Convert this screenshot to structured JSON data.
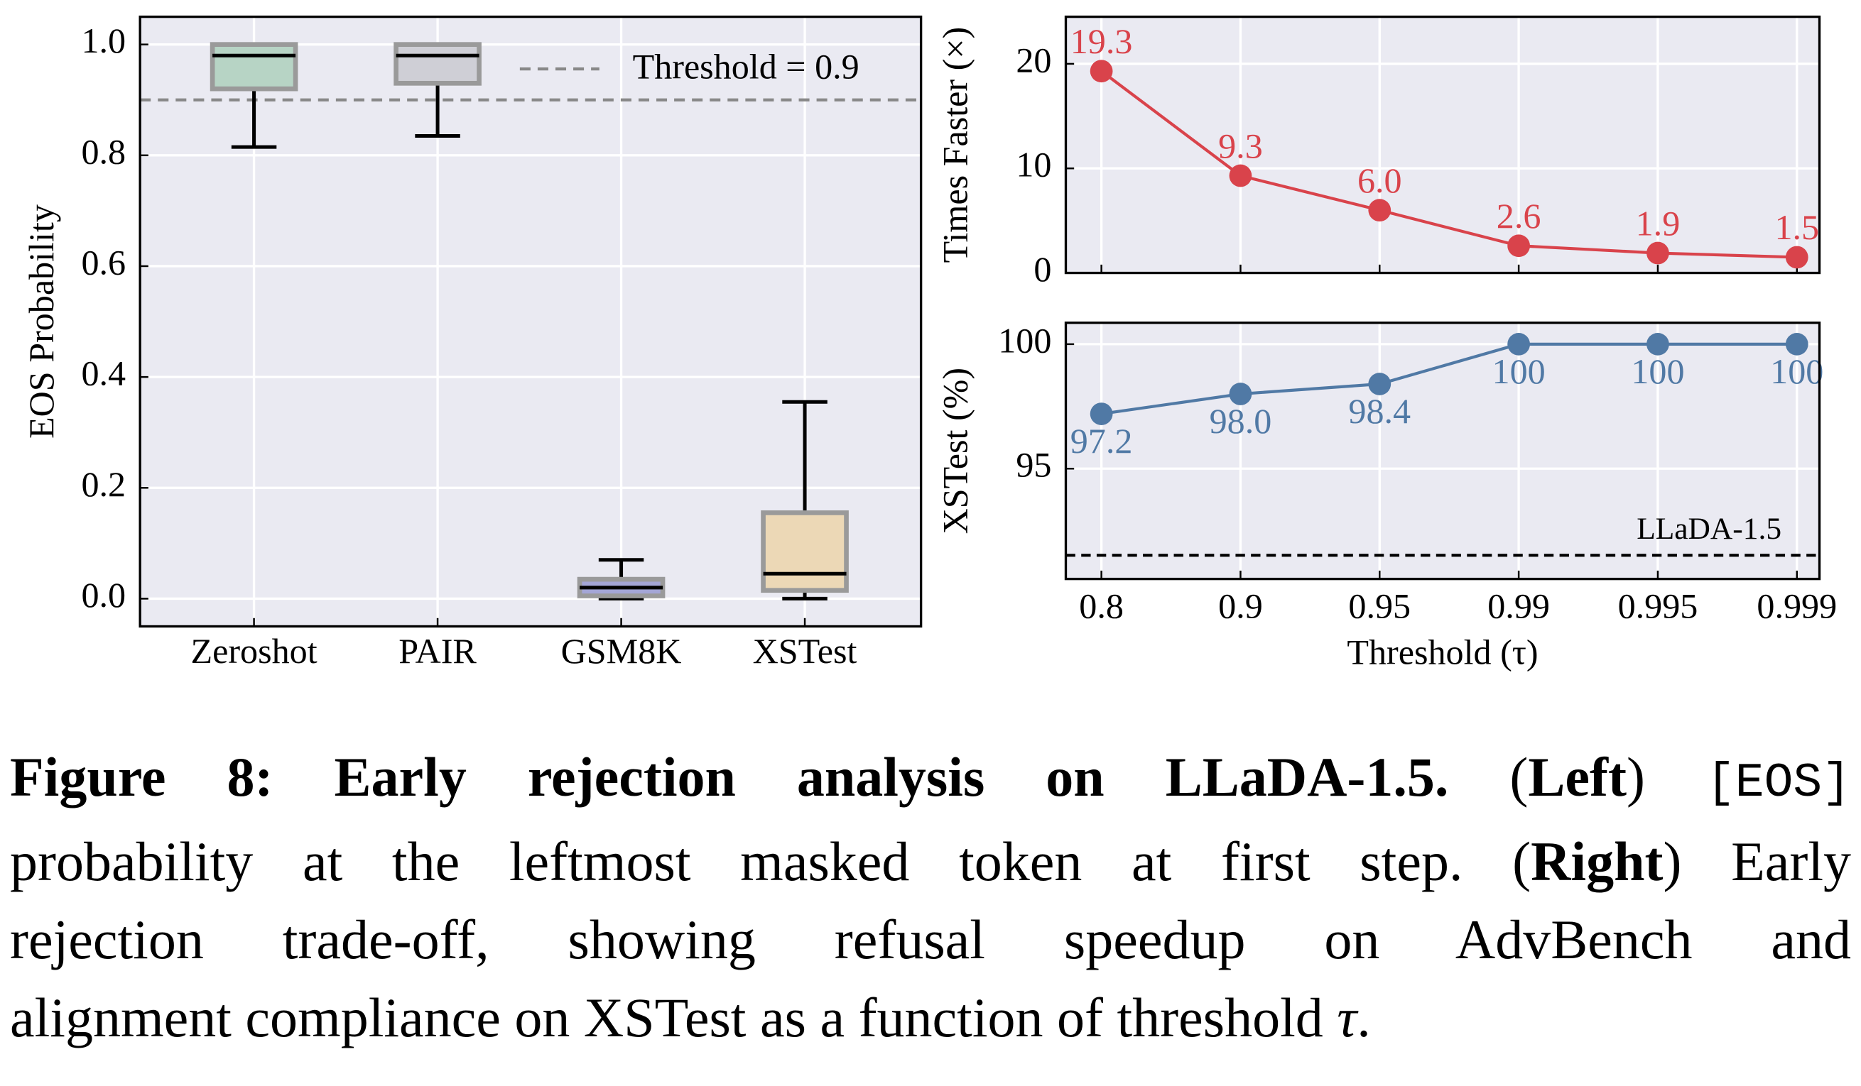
{
  "chart_data": [
    {
      "type": "box",
      "ylabel": "EOS Probability",
      "categories": [
        "Zeroshot",
        "PAIR",
        "GSM8K",
        "XSTest"
      ],
      "boxes": [
        {
          "whislo": 0.815,
          "q1": 0.92,
          "med": 0.98,
          "q3": 1.0,
          "whishi": 1.0,
          "color": "#b7d4c5"
        },
        {
          "whislo": 0.835,
          "q1": 0.93,
          "med": 0.98,
          "q3": 1.0,
          "whishi": 1.0,
          "color": "#cfcfd6"
        },
        {
          "whislo": 0.0,
          "q1": 0.005,
          "med": 0.02,
          "q3": 0.035,
          "whishi": 0.07,
          "color": "#a4a6d6"
        },
        {
          "whislo": 0.0,
          "q1": 0.015,
          "med": 0.045,
          "q3": 0.155,
          "whishi": 0.355,
          "color": "#ecd8b6"
        }
      ],
      "ylim": [
        -0.05,
        1.05
      ],
      "yticks": [
        {
          "value": 0,
          "label": "0.0"
        },
        {
          "value": 0.2,
          "label": "0.2"
        },
        {
          "value": 0.4,
          "label": "0.4"
        },
        {
          "value": 0.6,
          "label": "0.6"
        },
        {
          "value": 0.8,
          "label": "0.8"
        },
        {
          "value": 1,
          "label": "1.0"
        }
      ],
      "threshold": {
        "value": 0.9,
        "label": "Threshold = 0.9",
        "color": "#888888"
      },
      "grid": true
    },
    {
      "type": "line",
      "ylabel": "Times Faster (×)",
      "values": [
        19.3,
        9.3,
        6.0,
        2.6,
        1.9,
        1.5
      ],
      "value_labels": [
        "19.3",
        "9.3",
        "6.0",
        "2.6",
        "1.9",
        "1.5"
      ],
      "color": "#d9434b",
      "ylim": [
        0,
        24.5
      ],
      "yticks": [
        0,
        10,
        20
      ],
      "grid": true
    },
    {
      "type": "line",
      "ylabel": "XSTest (%)",
      "xlabel": "Threshold (τ)",
      "categories": [
        "0.8",
        "0.9",
        "0.95",
        "0.99",
        "0.995",
        "0.999"
      ],
      "values": [
        97.2,
        98.0,
        98.4,
        100,
        100,
        100
      ],
      "value_labels": [
        "97.2",
        "98.0",
        "98.4",
        "100",
        "100",
        "100"
      ],
      "color": "#5079a5",
      "ylim": [
        90.57,
        100.86
      ],
      "yticks": [
        95,
        100
      ],
      "grid": true,
      "reference": {
        "value": 91.52,
        "label": "LLaDA-1.5",
        "color": "#000000"
      }
    }
  ],
  "caption": {
    "lines": [
      [
        {
          "text": "Figure 8: Early rejection analysis on LLaDA-1.5.",
          "style": "bold"
        },
        {
          "text": " (",
          "style": "normal"
        },
        {
          "text": "Left",
          "style": "bold"
        },
        {
          "text": ") ",
          "style": "normal"
        },
        {
          "text": "[EOS]",
          "style": "mono"
        }
      ],
      [
        {
          "text": "probability at the leftmost masked token at first step. (",
          "style": "normal"
        },
        {
          "text": "Right",
          "style": "bold"
        },
        {
          "text": ") Early",
          "style": "normal"
        }
      ],
      [
        {
          "text": "rejection trade-off, showing refusal speedup on AdvBench and",
          "style": "normal"
        }
      ],
      [
        {
          "text": "alignment compliance on XSTest as a function of threshold ",
          "style": "normal"
        },
        {
          "text": "τ",
          "style": "italic"
        },
        {
          "text": ".",
          "style": "normal"
        }
      ]
    ]
  }
}
